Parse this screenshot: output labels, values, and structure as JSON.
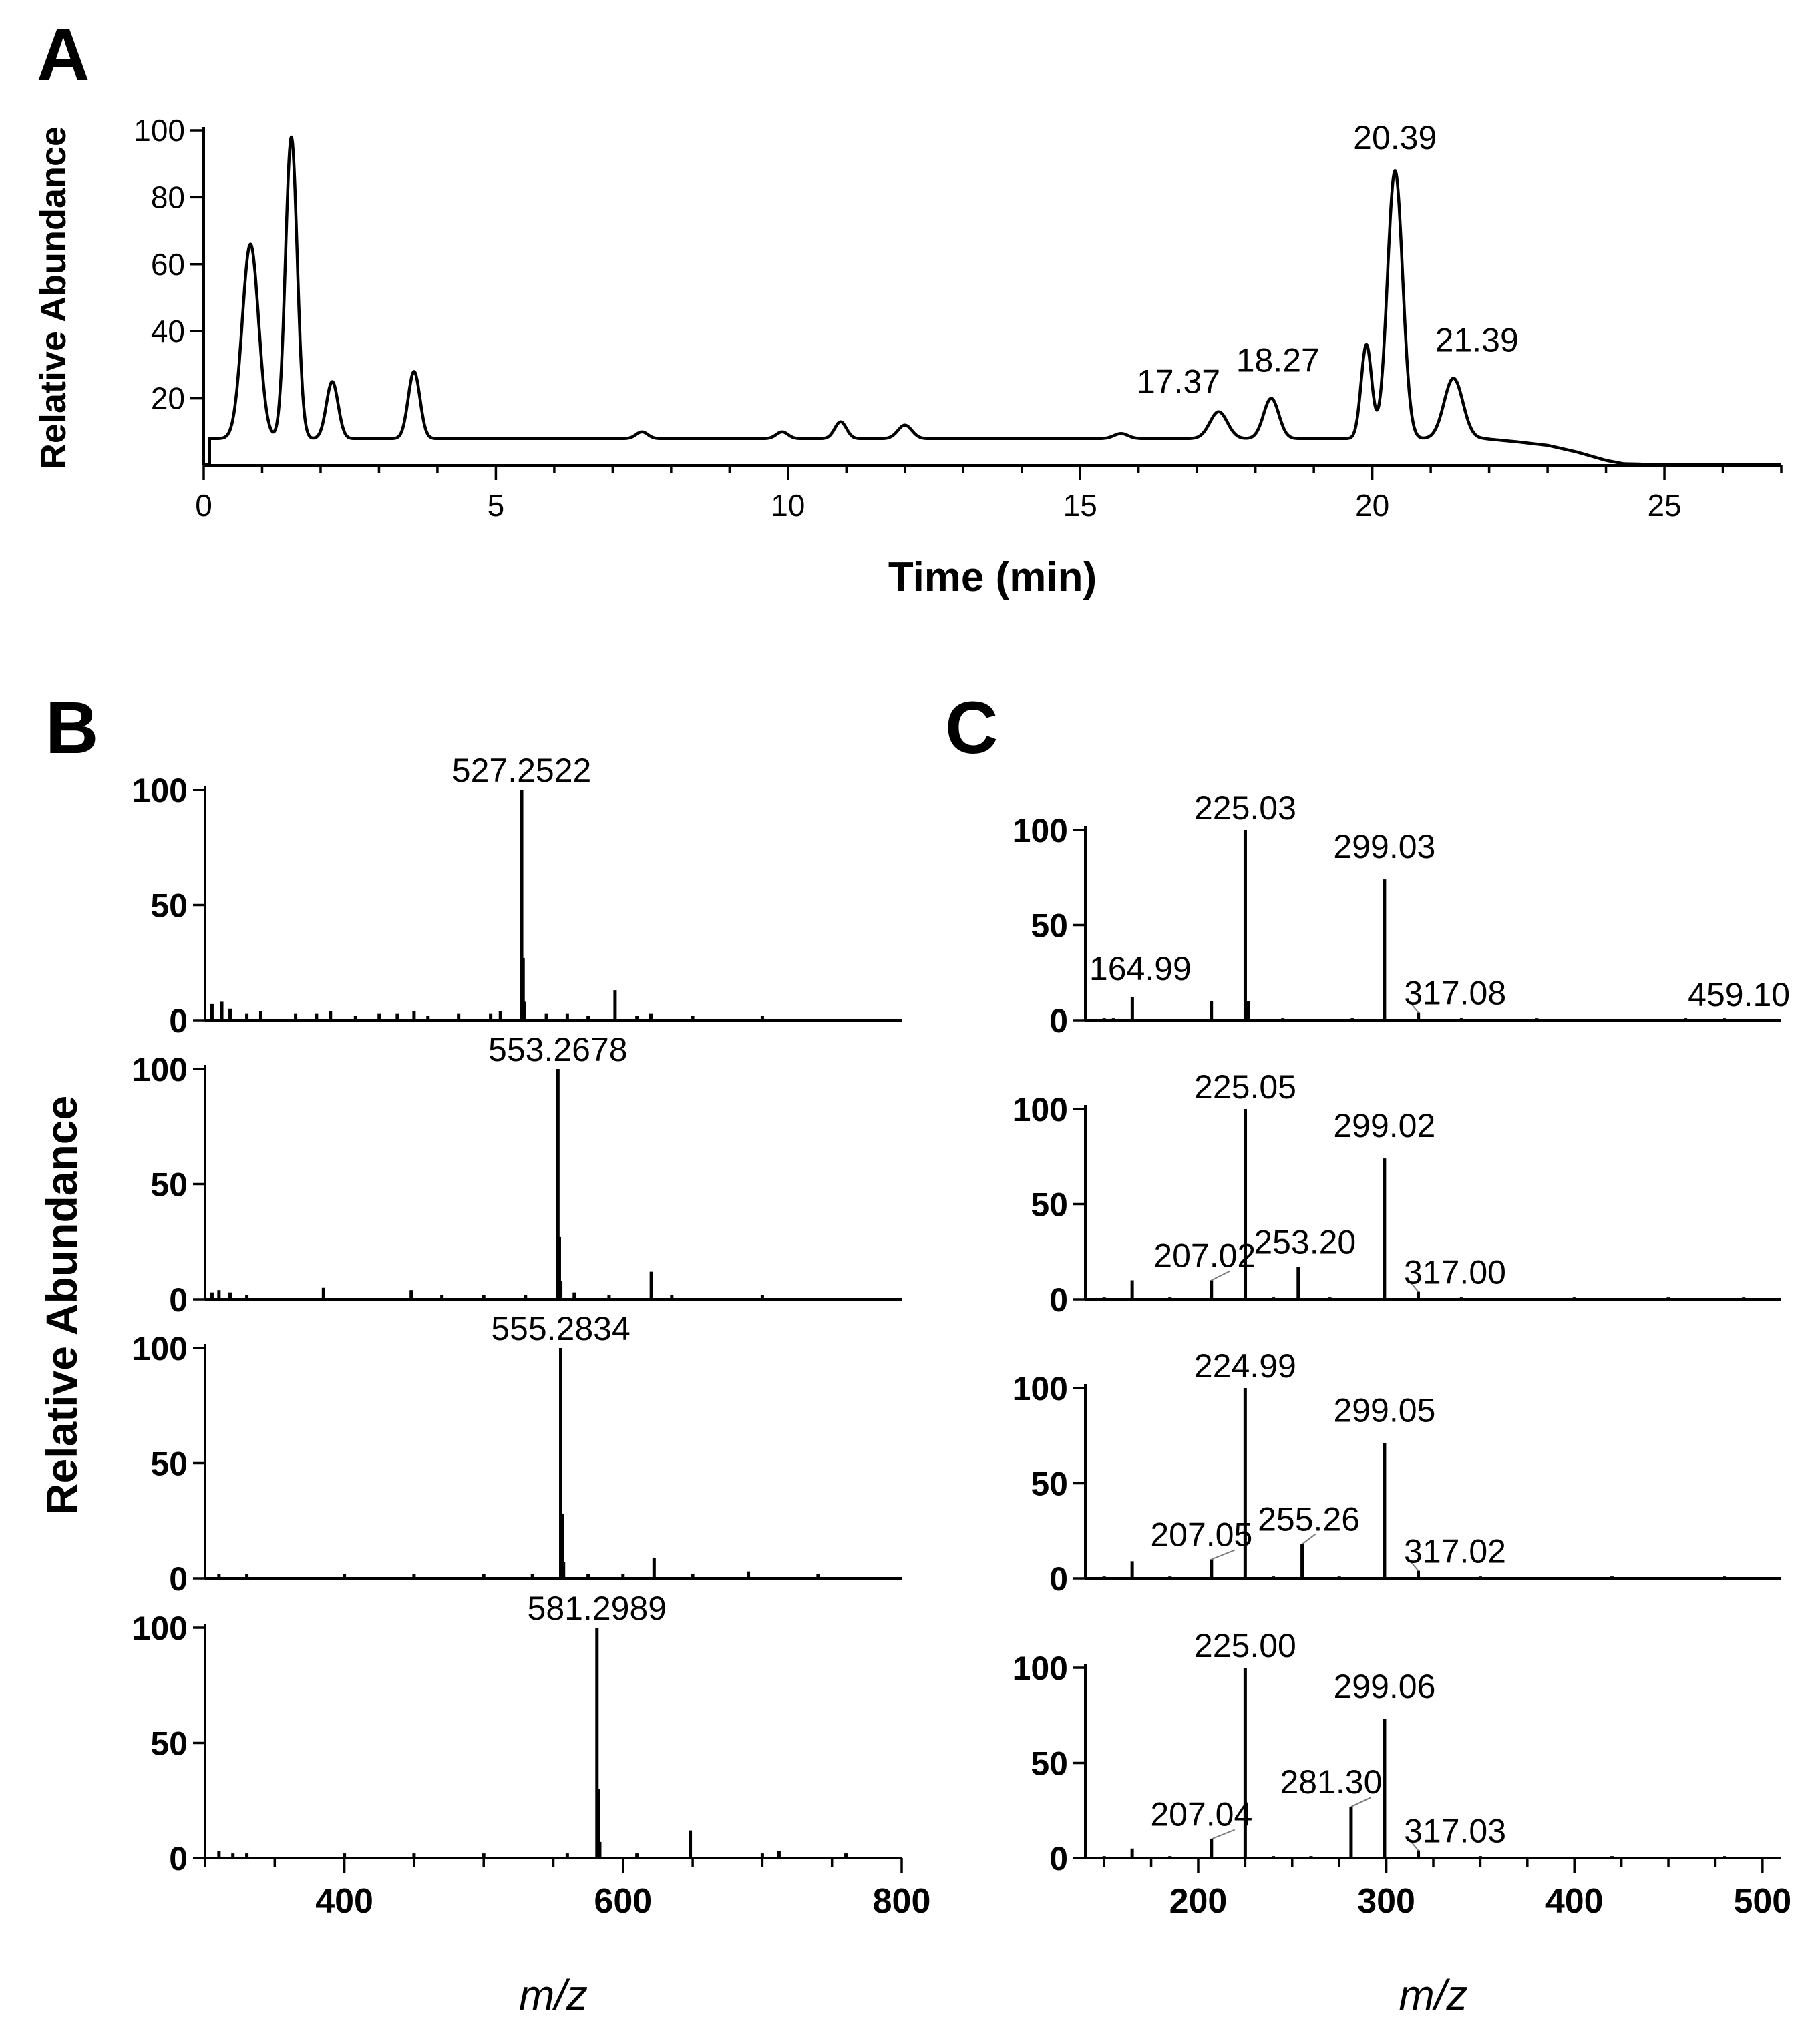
{
  "chart_data": [
    {
      "id": "A",
      "panel_label": "A",
      "type": "line",
      "xlabel": "Time (min)",
      "ylabel": "Relative Abundance",
      "xlim": [
        0,
        27
      ],
      "ylim": [
        0,
        100
      ],
      "xticks": [
        0,
        5,
        10,
        15,
        20,
        25
      ],
      "yticks": [
        20,
        40,
        60,
        80,
        100
      ],
      "grid": false,
      "baseline": 8,
      "peaks": [
        {
          "t": 0.8,
          "h": 66,
          "w": 0.14
        },
        {
          "t": 1.5,
          "h": 98,
          "w": 0.1
        },
        {
          "t": 2.2,
          "h": 25,
          "w": 0.1
        },
        {
          "t": 3.6,
          "h": 28,
          "w": 0.1
        },
        {
          "t": 7.5,
          "h": 10,
          "w": 0.1
        },
        {
          "t": 9.9,
          "h": 10,
          "w": 0.1
        },
        {
          "t": 10.9,
          "h": 13,
          "w": 0.1
        },
        {
          "t": 12.0,
          "h": 12,
          "w": 0.12
        },
        {
          "t": 15.7,
          "h": 9.5,
          "w": 0.12
        },
        {
          "t": 17.37,
          "h": 16,
          "w": 0.15
        },
        {
          "t": 18.27,
          "h": 20,
          "w": 0.13
        },
        {
          "t": 19.9,
          "h": 36,
          "w": 0.09
        },
        {
          "t": 20.39,
          "h": 88,
          "w": 0.13
        },
        {
          "t": 21.39,
          "h": 26,
          "w": 0.16
        }
      ],
      "tail": [
        [
          21.9,
          8
        ],
        [
          22.5,
          7
        ],
        [
          23.0,
          6
        ],
        [
          23.5,
          4
        ],
        [
          24.0,
          1.5
        ],
        [
          24.3,
          0.5
        ],
        [
          25,
          0.2
        ],
        [
          27,
          0.2
        ]
      ],
      "annotations": [
        {
          "label": "17.37",
          "x": 17.37,
          "y": 16
        },
        {
          "label": "18.27",
          "x": 18.27,
          "y": 20
        },
        {
          "label": "20.39",
          "x": 20.39,
          "y": 88
        },
        {
          "label": "21.39",
          "x": 21.39,
          "y": 26
        }
      ]
    },
    {
      "id": "B",
      "panel_label": "B",
      "type": "bar",
      "xlabel": "m/z",
      "ylabel": "Relative Abundance",
      "xlim": [
        300,
        800
      ],
      "xticks": [
        400,
        600,
        800
      ],
      "yticks": [
        0,
        50,
        100
      ],
      "spectra": [
        {
          "annotations": [
            {
              "label": "527.2522",
              "x": 527.25,
              "y": 100
            }
          ],
          "sticks": [
            [
              527.25,
              100
            ],
            [
              528.3,
              27
            ],
            [
              529.3,
              8
            ],
            [
              594.3,
              13
            ],
            [
              390,
              4
            ],
            [
              450,
              4
            ],
            [
              305,
              7
            ],
            [
              312,
              8
            ],
            [
              318,
              5
            ],
            [
              330,
              3
            ],
            [
              340,
              4
            ],
            [
              365,
              3
            ],
            [
              380,
              3
            ],
            [
              408,
              2
            ],
            [
              425,
              3
            ],
            [
              438,
              3
            ],
            [
              460,
              2
            ],
            [
              482,
              3
            ],
            [
              505,
              3
            ],
            [
              512,
              4
            ],
            [
              545,
              3
            ],
            [
              560,
              3
            ],
            [
              575,
              2
            ],
            [
              610,
              2
            ],
            [
              620,
              3
            ],
            [
              650,
              2
            ],
            [
              700,
              2
            ]
          ]
        },
        {
          "annotations": [
            {
              "label": "553.2678",
              "x": 553.27,
              "y": 100
            }
          ],
          "sticks": [
            [
              553.27,
              100
            ],
            [
              554.3,
              27
            ],
            [
              555.3,
              8
            ],
            [
              620.3,
              12
            ],
            [
              305,
              3
            ],
            [
              310,
              4
            ],
            [
              318,
              3
            ],
            [
              330,
              2
            ],
            [
              385,
              5
            ],
            [
              448,
              4
            ],
            [
              470,
              2
            ],
            [
              500,
              2
            ],
            [
              530,
              2
            ],
            [
              565,
              3
            ],
            [
              590,
              2
            ],
            [
              635,
              2
            ],
            [
              700,
              2
            ]
          ]
        },
        {
          "annotations": [
            {
              "label": "555.2834",
              "x": 555.28,
              "y": 100
            }
          ],
          "sticks": [
            [
              555.28,
              100
            ],
            [
              556.3,
              28
            ],
            [
              557.3,
              7
            ],
            [
              622.3,
              9
            ],
            [
              310,
              2
            ],
            [
              330,
              2
            ],
            [
              400,
              2
            ],
            [
              450,
              2
            ],
            [
              500,
              2
            ],
            [
              535,
              2
            ],
            [
              575,
              2
            ],
            [
              600,
              2
            ],
            [
              650,
              2
            ],
            [
              690,
              3
            ],
            [
              740,
              2
            ]
          ]
        },
        {
          "annotations": [
            {
              "label": "581.2989",
              "x": 581.3,
              "y": 100
            }
          ],
          "sticks": [
            [
              581.3,
              100
            ],
            [
              582.3,
              30
            ],
            [
              583.3,
              7
            ],
            [
              648.3,
              12
            ],
            [
              310,
              3
            ],
            [
              320,
              2
            ],
            [
              330,
              2
            ],
            [
              400,
              2
            ],
            [
              450,
              2
            ],
            [
              500,
              2
            ],
            [
              560,
              2
            ],
            [
              610,
              2
            ],
            [
              700,
              2
            ],
            [
              712,
              3
            ],
            [
              760,
              2
            ]
          ]
        }
      ]
    },
    {
      "id": "C",
      "panel_label": "C",
      "type": "bar",
      "xlabel": "m/z",
      "xlim": [
        140,
        510
      ],
      "xticks": [
        200,
        300,
        400,
        500
      ],
      "yticks": [
        0,
        50,
        100
      ],
      "spectra": [
        {
          "annotations": [
            {
              "label": "225.03",
              "x": 225.03,
              "y": 100
            },
            {
              "label": "299.03",
              "x": 299.03,
              "y": 74
            },
            {
              "label": "164.99",
              "x": 164.99,
              "y": 12
            },
            {
              "label": "317.08",
              "x": 317.08,
              "y": 4
            },
            {
              "label": "459.10",
              "x": 459.1,
              "y": 1
            }
          ],
          "sticks": [
            [
              225.03,
              100
            ],
            [
              226.5,
              10
            ],
            [
              299.03,
              74
            ],
            [
              164.99,
              12
            ],
            [
              207.0,
              10
            ],
            [
              317.08,
              4
            ],
            [
              459.1,
              1
            ],
            [
              150,
              1
            ],
            [
              155,
              1
            ],
            [
              245,
              1
            ],
            [
              282,
              1
            ],
            [
              340,
              1
            ],
            [
              380,
              1
            ],
            [
              480,
              1
            ]
          ]
        },
        {
          "annotations": [
            {
              "label": "225.05",
              "x": 225.05,
              "y": 100
            },
            {
              "label": "299.02",
              "x": 299.02,
              "y": 74
            },
            {
              "label": "207.02",
              "x": 207.02,
              "y": 10
            },
            {
              "label": "253.20",
              "x": 253.2,
              "y": 17
            },
            {
              "label": "317.00",
              "x": 317.0,
              "y": 4
            }
          ],
          "sticks": [
            [
              225.05,
              100
            ],
            [
              299.02,
              74
            ],
            [
              253.2,
              17
            ],
            [
              207.02,
              10
            ],
            [
              164.9,
              10
            ],
            [
              317.0,
              4
            ],
            [
              150,
              1
            ],
            [
              185,
              1
            ],
            [
              240,
              1
            ],
            [
              270,
              1
            ],
            [
              340,
              1
            ],
            [
              400,
              1
            ],
            [
              450,
              1
            ],
            [
              490,
              1
            ]
          ]
        },
        {
          "annotations": [
            {
              "label": "224.99",
              "x": 224.99,
              "y": 100
            },
            {
              "label": "299.05",
              "x": 299.05,
              "y": 71
            },
            {
              "label": "207.05",
              "x": 207.05,
              "y": 10
            },
            {
              "label": "255.26",
              "x": 255.26,
              "y": 18
            },
            {
              "label": "317.02",
              "x": 317.02,
              "y": 4
            }
          ],
          "sticks": [
            [
              224.99,
              100
            ],
            [
              299.05,
              71
            ],
            [
              255.26,
              18
            ],
            [
              207.05,
              10
            ],
            [
              164.9,
              9
            ],
            [
              317.02,
              4
            ],
            [
              150,
              1
            ],
            [
              185,
              1
            ],
            [
              240,
              1
            ],
            [
              275,
              1
            ],
            [
              350,
              1
            ],
            [
              420,
              1
            ],
            [
              480,
              1
            ]
          ]
        },
        {
          "annotations": [
            {
              "label": "225.00",
              "x": 225.0,
              "y": 100
            },
            {
              "label": "299.06",
              "x": 299.06,
              "y": 73
            },
            {
              "label": "207.04",
              "x": 207.04,
              "y": 10
            },
            {
              "label": "281.30",
              "x": 281.3,
              "y": 27
            },
            {
              "label": "317.03",
              "x": 317.03,
              "y": 4
            }
          ],
          "sticks": [
            [
              225.0,
              100
            ],
            [
              299.06,
              73
            ],
            [
              281.3,
              27
            ],
            [
              207.04,
              10
            ],
            [
              164.9,
              5
            ],
            [
              317.03,
              4
            ],
            [
              150,
              1
            ],
            [
              185,
              1
            ],
            [
              240,
              1
            ],
            [
              260,
              1
            ],
            [
              350,
              1
            ],
            [
              420,
              1
            ],
            [
              480,
              1
            ]
          ]
        }
      ]
    }
  ]
}
